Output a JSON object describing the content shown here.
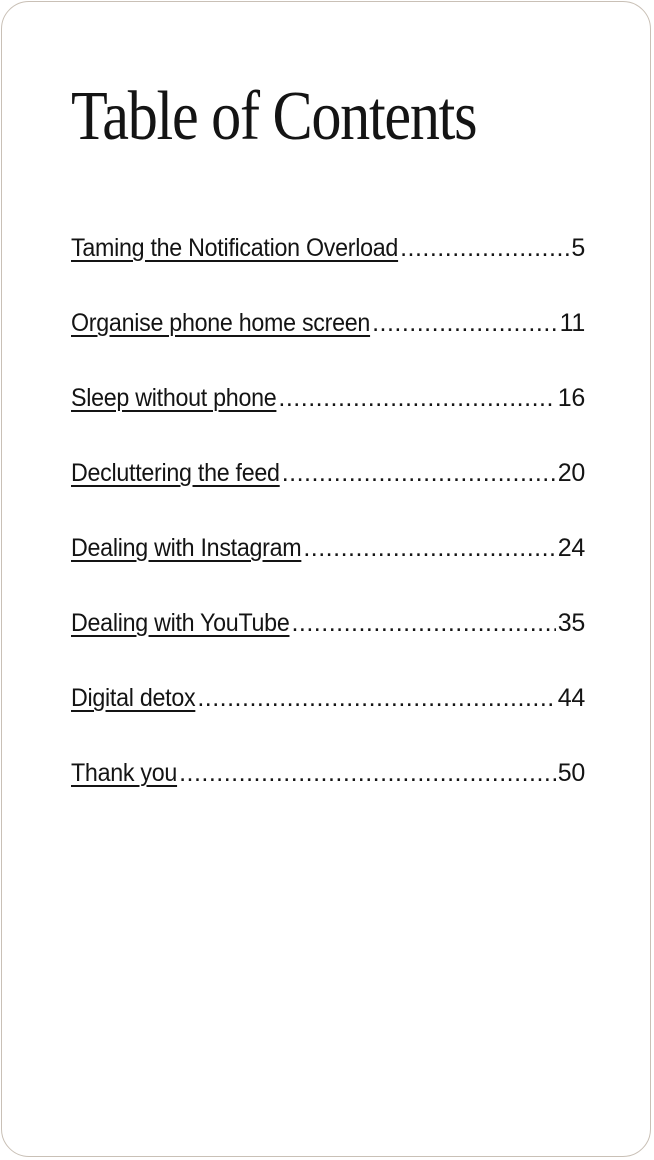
{
  "title": "Table of Contents",
  "entries": [
    {
      "label": "Taming the Notification Overload",
      "page": "5"
    },
    {
      "label": "Organise phone home screen",
      "page": "11"
    },
    {
      "label": "Sleep without phone",
      "page": "16"
    },
    {
      "label": "Decluttering the feed",
      "page": "20"
    },
    {
      "label": "Dealing with Instagram",
      "page": "24"
    },
    {
      "label": "Dealing with YouTube",
      "page": "35"
    },
    {
      "label": "Digital detox",
      "page": "44"
    },
    {
      "label": "Thank you",
      "page": "50"
    }
  ],
  "colors": {
    "text": "#141414",
    "border": "#c9c0b6",
    "background": "#ffffff"
  }
}
